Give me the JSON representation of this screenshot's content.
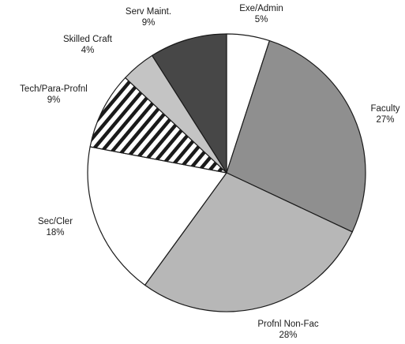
{
  "chart_data": {
    "type": "pie",
    "title": "",
    "start_angle_deg": 0,
    "direction": "clockwise",
    "slices": [
      {
        "label": "Exe/Admin",
        "value": 5,
        "value_label": "5%",
        "fill": "#ffffff",
        "pattern": "none"
      },
      {
        "label": "Faculty",
        "value": 27,
        "value_label": "27%",
        "fill": "#8f8f8f",
        "pattern": "none"
      },
      {
        "label": "Profnl Non-Fac",
        "value": 28,
        "value_label": "28%",
        "fill": "#b7b7b7",
        "pattern": "none"
      },
      {
        "label": "Sec/Cler",
        "value": 18,
        "value_label": "18%",
        "fill": "#ffffff",
        "pattern": "none"
      },
      {
        "label": "Tech/Para-Profnl",
        "value": 9,
        "value_label": "9%",
        "fill": "#ffffff",
        "pattern": "diagonal-stripes"
      },
      {
        "label": "Skilled Craft",
        "value": 4,
        "value_label": "4%",
        "fill": "#c4c4c4",
        "pattern": "none"
      },
      {
        "label": "Serv Maint.",
        "value": 9,
        "value_label": "9%",
        "fill": "#474747",
        "pattern": "none"
      }
    ]
  }
}
